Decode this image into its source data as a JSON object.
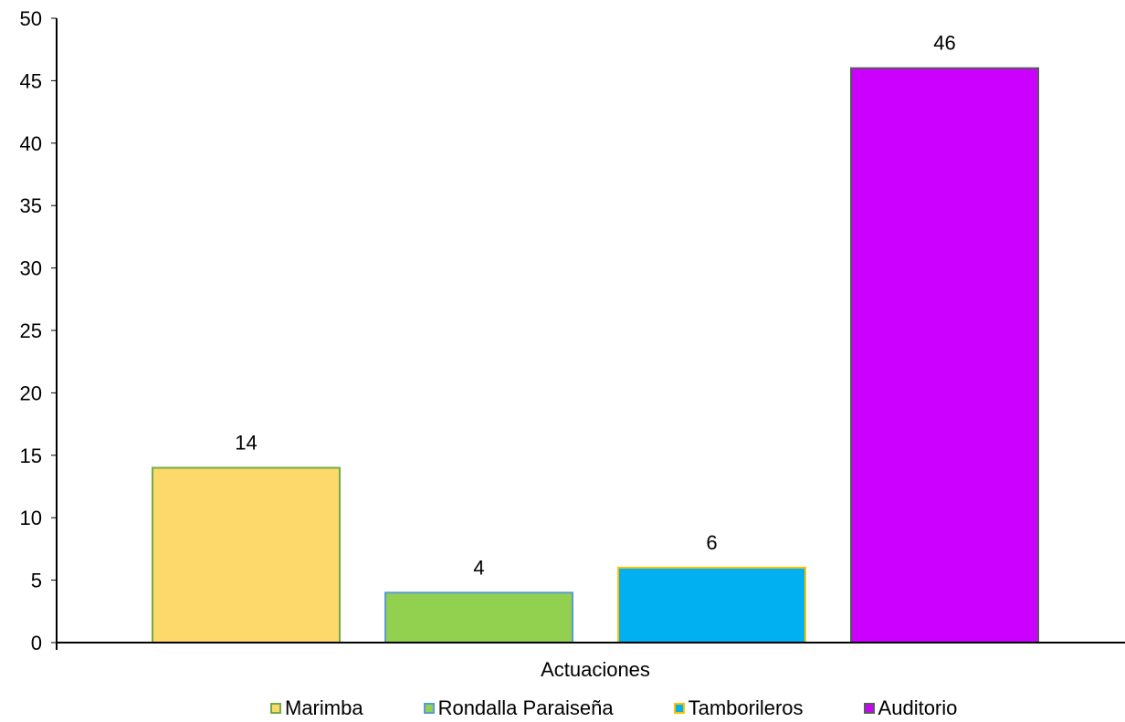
{
  "chart_data": {
    "type": "bar",
    "title": "",
    "xlabel": "Actuaciones",
    "ylabel": "",
    "ylim": [
      0,
      50
    ],
    "yticks": [
      "0",
      "5",
      "10",
      "15",
      "20",
      "25",
      "30",
      "35",
      "40",
      "45",
      "50"
    ],
    "categories": [
      "Actuaciones"
    ],
    "grid": false,
    "legend_position": "bottom",
    "series": [
      {
        "name": "Marimba",
        "values": [
          14
        ],
        "label": "14",
        "color": "#FDD86B",
        "border": "#70AD47"
      },
      {
        "name": "Rondalla Paraiseña",
        "values": [
          4
        ],
        "label": "4",
        "color": "#92D050",
        "border": "#5B9BD5"
      },
      {
        "name": "Tamborileros",
        "values": [
          6
        ],
        "label": "6",
        "color": "#00B0F0",
        "border": "#FFC000"
      },
      {
        "name": "Auditorio",
        "values": [
          46
        ],
        "label": "46",
        "color": "#CC00FF",
        "border": "#595959"
      }
    ]
  }
}
